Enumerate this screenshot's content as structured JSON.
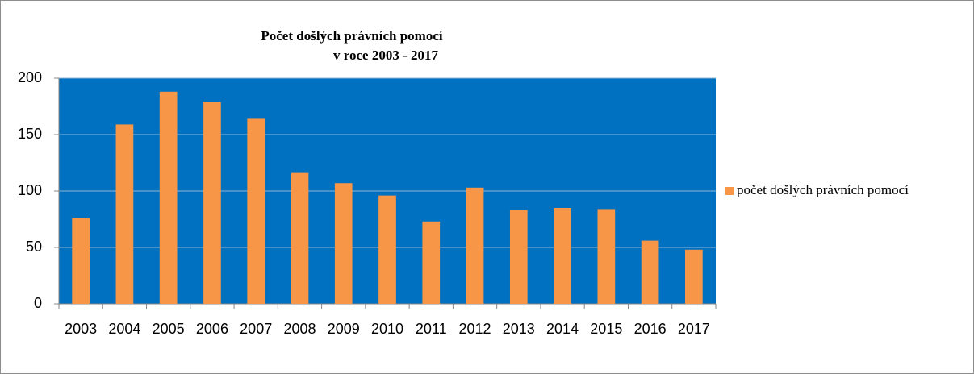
{
  "chart_data": {
    "type": "bar",
    "title": "Počet došlých právních pomocí",
    "subtitle": "v roce 2003 - 2017",
    "categories": [
      "2003",
      "2004",
      "2005",
      "2006",
      "2007",
      "2008",
      "2009",
      "2010",
      "2011",
      "2012",
      "2013",
      "2014",
      "2015",
      "2016",
      "2017"
    ],
    "series": [
      {
        "name": "počet došlých právních pomocí",
        "color": "#f79646",
        "values": [
          76,
          159,
          188,
          179,
          164,
          116,
          107,
          96,
          73,
          103,
          83,
          85,
          84,
          56,
          48
        ]
      }
    ],
    "ylim": [
      0,
      200
    ],
    "yticks": [
      0,
      50,
      100,
      150,
      200
    ],
    "grid": true,
    "legend": "right",
    "plot_background": "#0070c0"
  }
}
